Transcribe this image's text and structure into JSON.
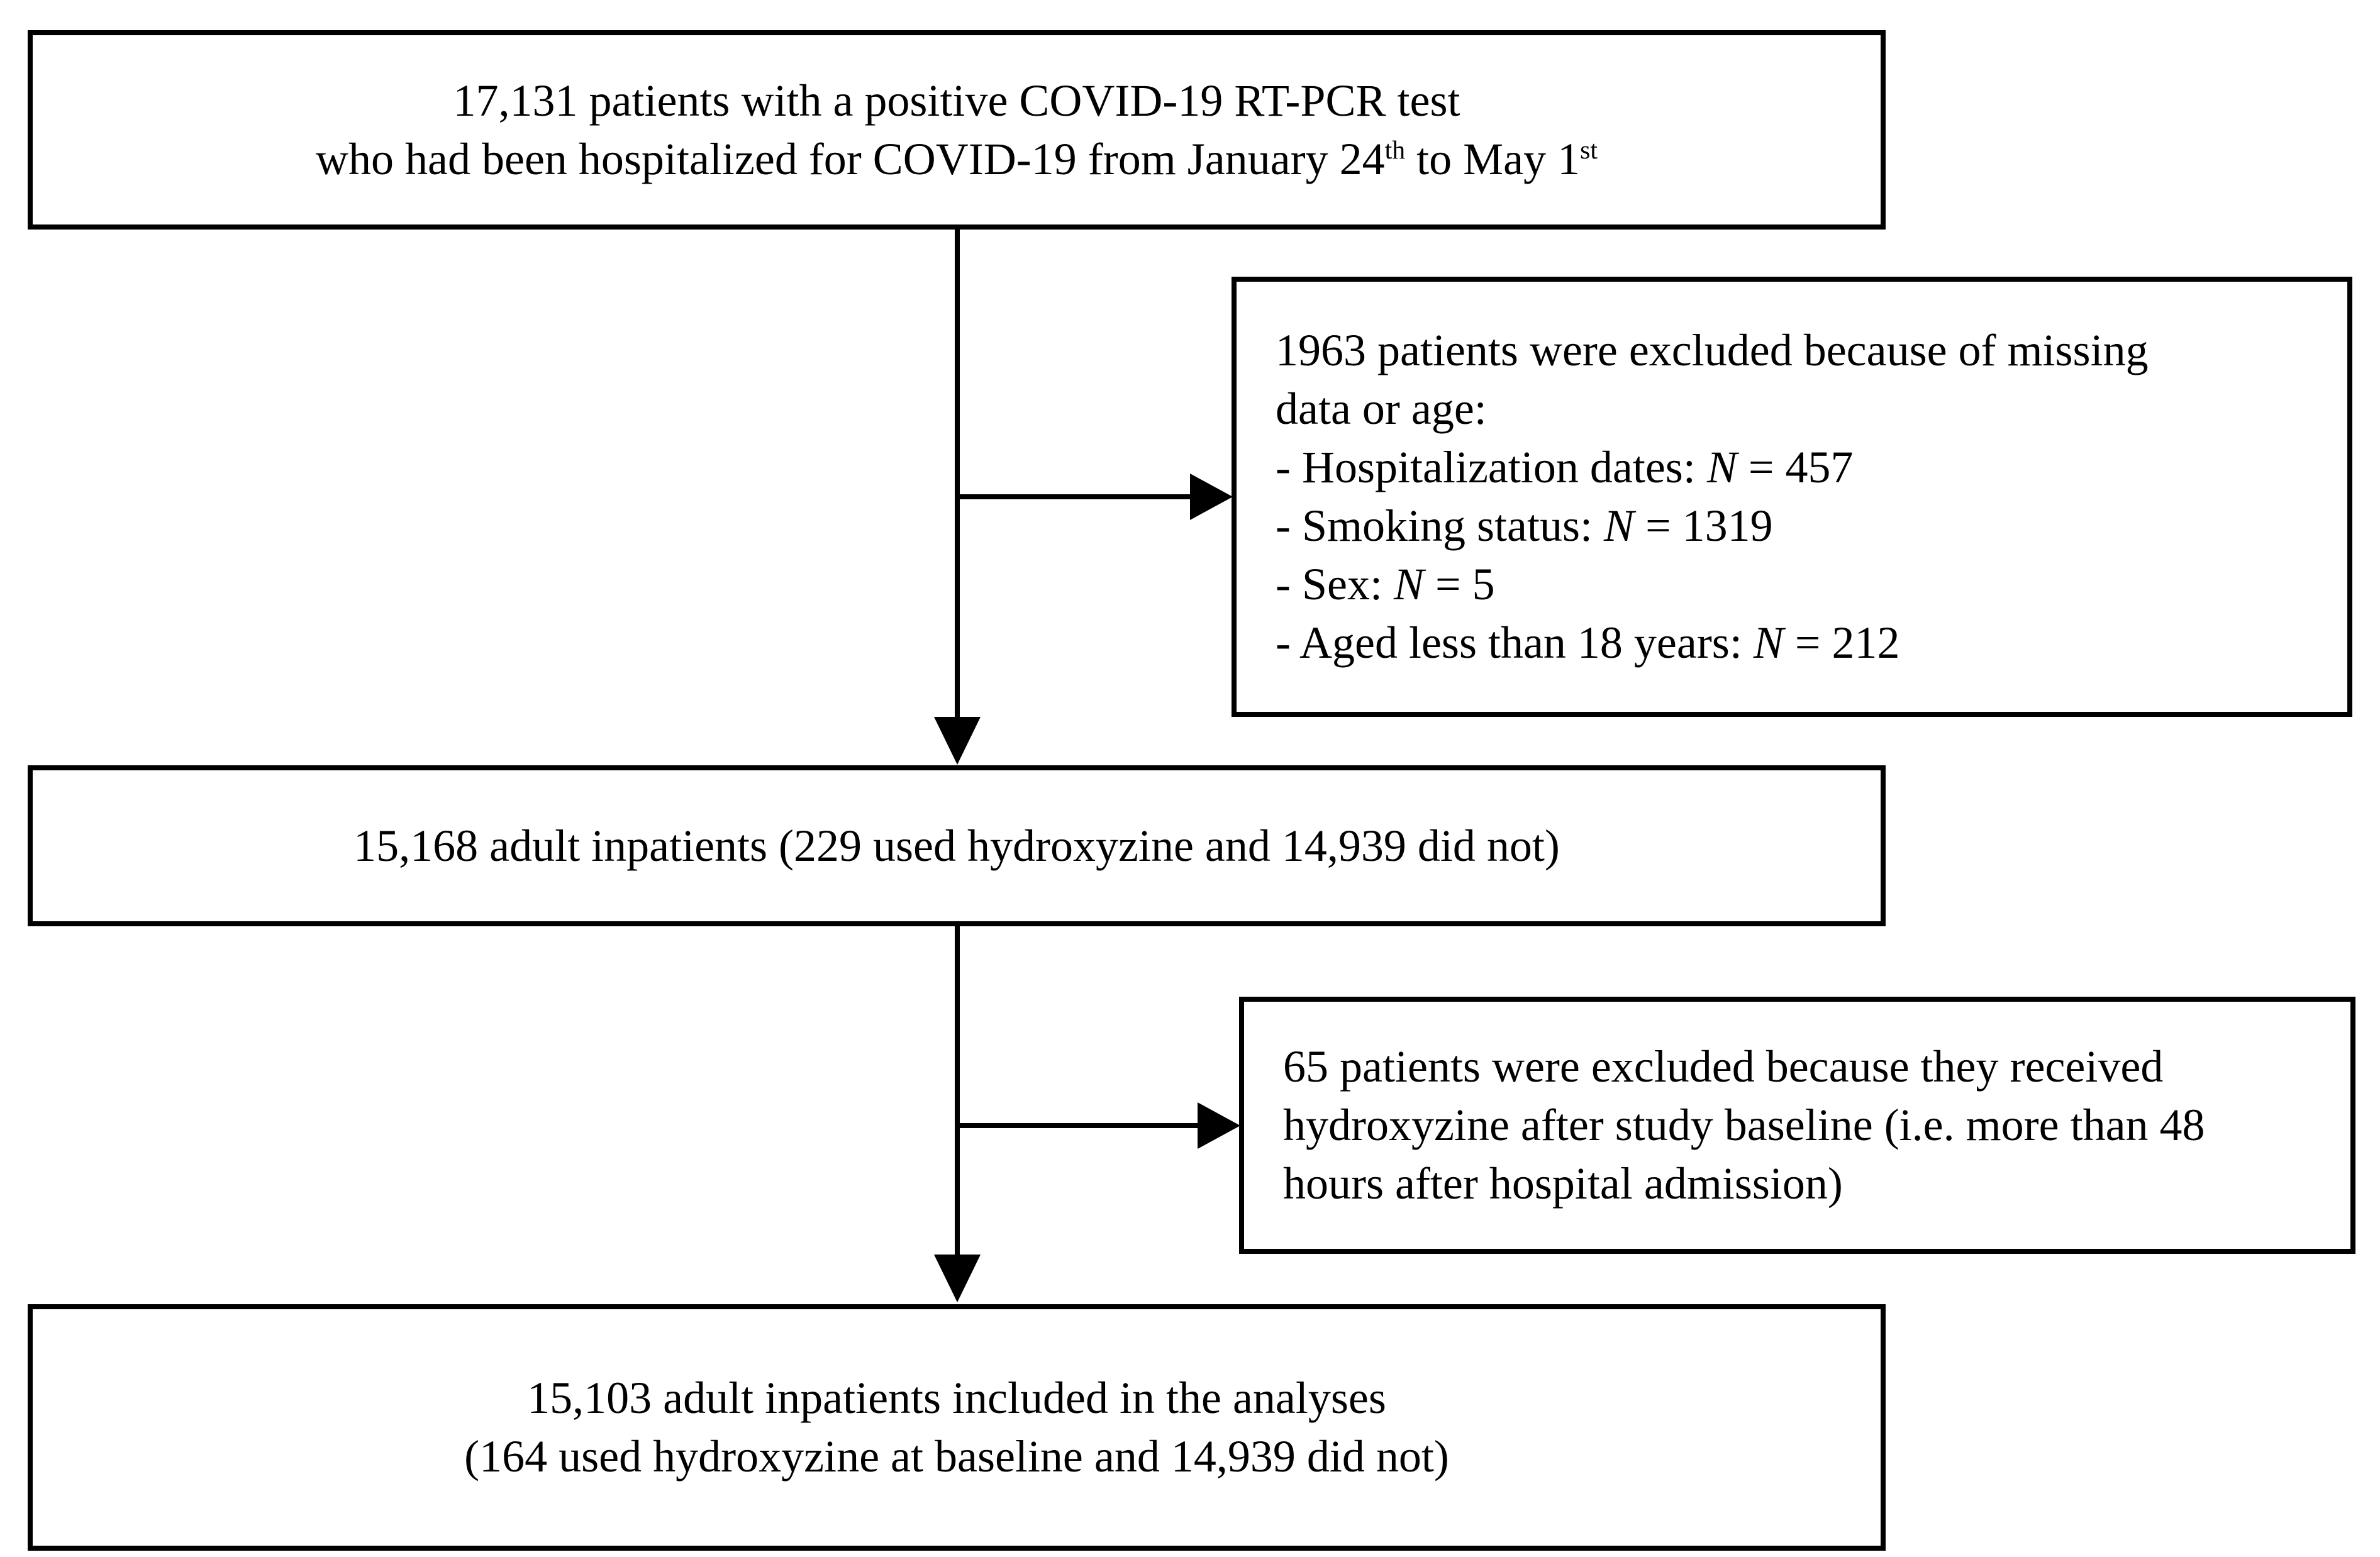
{
  "flowchart": {
    "initial_box": {
      "line1": "17,131 patients with a positive COVID-19 RT-PCR test",
      "line2_part1": "who had been hospitalized for COVID-19 from January 24",
      "line2_sup1": "th",
      "line2_part2": " to May 1",
      "line2_sup2": "st"
    },
    "exclusion_box_1": {
      "intro_line1": "1963 patients were excluded because of missing",
      "intro_line2": "data or age:",
      "items": [
        {
          "label": "- Hospitalization dates: ",
          "n": "N",
          "value": " = 457"
        },
        {
          "label": "- Smoking status: ",
          "n": "N",
          "value": " = 1319"
        },
        {
          "label": "- Sex: ",
          "n": "N",
          "value": " = 5"
        },
        {
          "label": "- Aged less than 18 years: ",
          "n": "N",
          "value": " = 212"
        }
      ]
    },
    "adult_box": {
      "line1": "15,168 adult inpatients (229 used hydroxyzine and 14,939 did not)"
    },
    "exclusion_box_2": {
      "line1": "65 patients were excluded because they received",
      "line2": "hydroxyzine after study baseline (i.e. more than 48",
      "line3": "hours after hospital admission)"
    },
    "final_box": {
      "line1": "15,103 adult inpatients included in the analyses",
      "line2": "(164 used hydroxyzine at baseline and 14,939 did not)"
    },
    "colors": {
      "line": "#000000",
      "background": "#ffffff",
      "text": "#000000"
    }
  }
}
